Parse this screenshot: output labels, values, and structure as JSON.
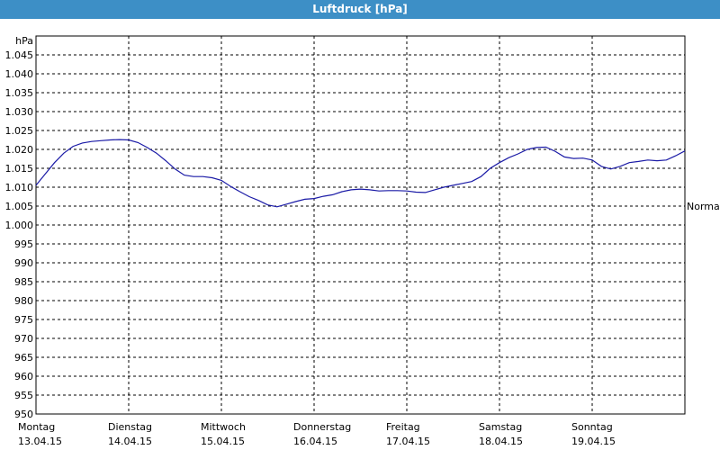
{
  "window": {
    "title": "Luftdruck [hPa]"
  },
  "chart_data": {
    "type": "line",
    "title": "Luftdruck [hPa]",
    "ylabel": "hPa",
    "xlabel": "",
    "ylim": [
      950,
      1050
    ],
    "yticks": [
      950,
      955,
      960,
      965,
      970,
      975,
      980,
      985,
      990,
      995,
      1000,
      1005,
      1010,
      1015,
      1020,
      1025,
      1030,
      1035,
      1040,
      1045
    ],
    "ytick_labels": [
      "950",
      "955",
      "960",
      "965",
      "970",
      "975",
      "980",
      "985",
      "990",
      "995",
      "1.000",
      "1.005",
      "1.010",
      "1.015",
      "1.020",
      "1.025",
      "1.030",
      "1.035",
      "1.040",
      "1.045"
    ],
    "xlim": [
      0,
      7
    ],
    "x_ticks": [
      {
        "x": 0,
        "day": "Montag",
        "date": "13.04.15"
      },
      {
        "x": 1,
        "day": "Dienstag",
        "date": "14.04.15"
      },
      {
        "x": 2,
        "day": "Mittwoch",
        "date": "15.04.15"
      },
      {
        "x": 3,
        "day": "Donnerstag",
        "date": "16.04.15"
      },
      {
        "x": 4,
        "day": "Freitag",
        "date": "17.04.15"
      },
      {
        "x": 5,
        "day": "Samstag",
        "date": "18.04.15"
      },
      {
        "x": 6,
        "day": "Sonntag",
        "date": "19.04.15"
      }
    ],
    "reference": {
      "label": "Normal",
      "value": 1005
    },
    "grid": true,
    "series": [
      {
        "color": "#1a1aa6",
        "x": [
          0,
          0.1,
          0.2,
          0.3,
          0.4,
          0.5,
          0.6,
          0.7,
          0.8,
          0.9,
          1.0,
          1.1,
          1.2,
          1.3,
          1.4,
          1.5,
          1.6,
          1.7,
          1.8,
          1.9,
          2.0,
          2.1,
          2.2,
          2.3,
          2.4,
          2.5,
          2.6,
          2.7,
          2.8,
          2.9,
          3.0,
          3.1,
          3.2,
          3.3,
          3.4,
          3.5,
          3.6,
          3.7,
          3.8,
          3.9,
          4.0,
          4.1,
          4.2,
          4.3,
          4.4,
          4.5,
          4.6,
          4.7,
          4.8,
          4.9,
          5.0,
          5.1,
          5.2,
          5.3,
          5.4,
          5.5,
          5.6,
          5.7,
          5.8,
          5.9,
          6.0,
          6.1,
          6.2,
          6.3,
          6.4,
          6.5,
          6.6,
          6.7,
          6.8,
          6.9,
          7.0
        ],
        "values": [
          1010.5,
          1013.5,
          1016.5,
          1019.0,
          1020.8,
          1021.7,
          1022.1,
          1022.3,
          1022.5,
          1022.6,
          1022.5,
          1021.8,
          1020.5,
          1019.0,
          1017.0,
          1014.8,
          1013.2,
          1012.8,
          1012.8,
          1012.5,
          1011.8,
          1010.2,
          1008.8,
          1007.5,
          1006.5,
          1005.3,
          1004.8,
          1005.5,
          1006.2,
          1006.8,
          1007.0,
          1007.6,
          1008.0,
          1008.8,
          1009.3,
          1009.5,
          1009.3,
          1009.0,
          1009.1,
          1009.1,
          1009.0,
          1008.7,
          1008.6,
          1009.3,
          1010.0,
          1010.5,
          1011.0,
          1011.5,
          1012.8,
          1015.0,
          1016.5,
          1017.8,
          1018.8,
          1020.0,
          1020.5,
          1020.6,
          1019.5,
          1018.0,
          1017.6,
          1017.7,
          1017.2,
          1015.5,
          1014.8,
          1015.5,
          1016.5,
          1016.8,
          1017.2,
          1017.0,
          1017.2,
          1018.3,
          1019.6
        ]
      }
    ]
  }
}
